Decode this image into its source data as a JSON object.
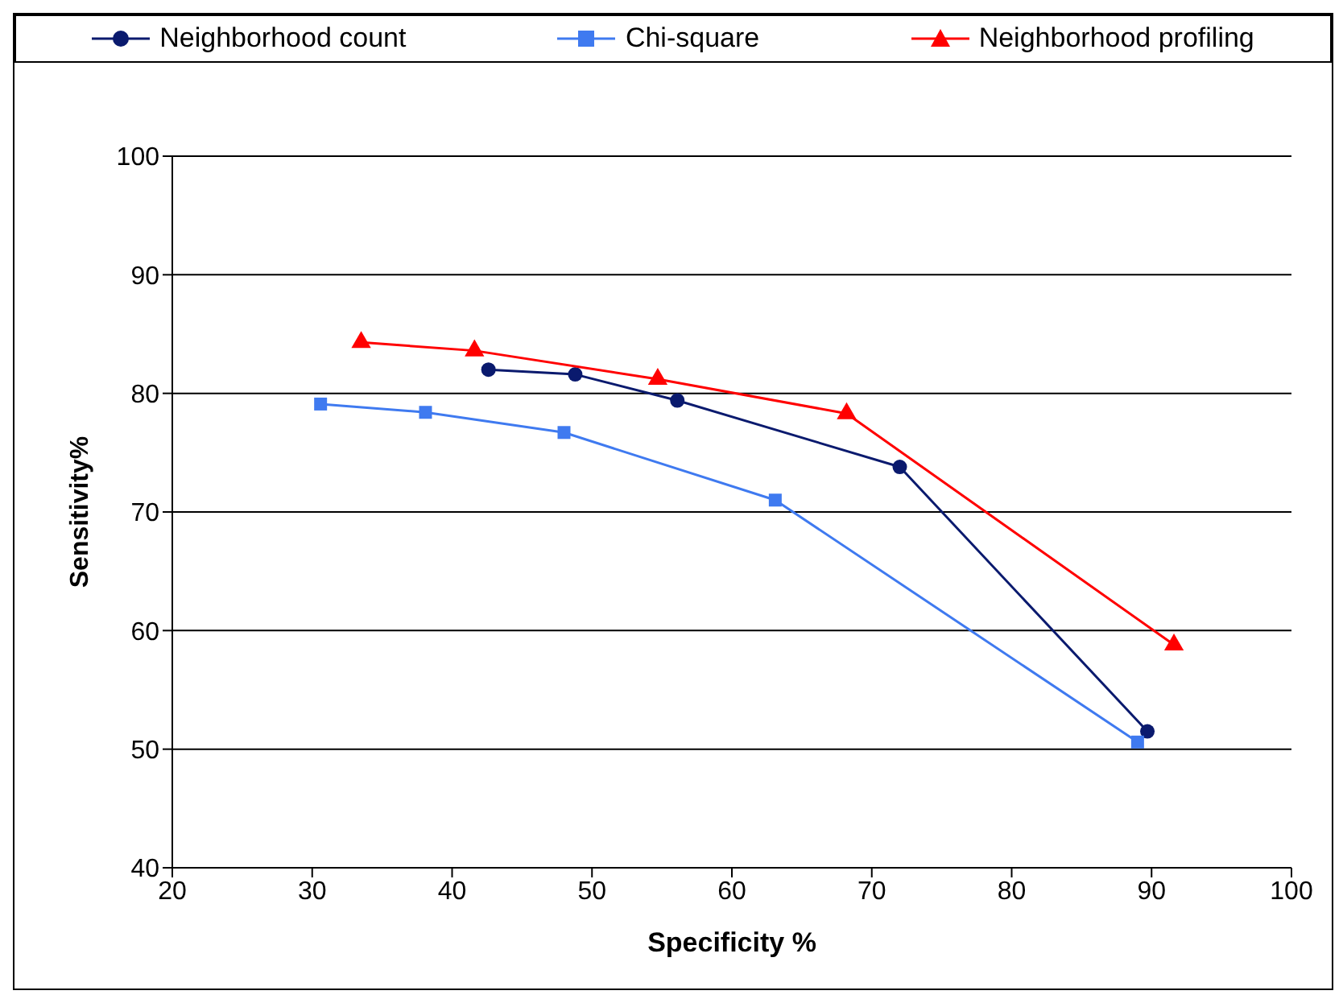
{
  "chart_data": {
    "type": "line",
    "xlabel": "Specificity %",
    "ylabel": "Sensitivity%",
    "xlim": [
      20,
      100
    ],
    "xticks": [
      20,
      30,
      40,
      50,
      60,
      70,
      80,
      90,
      100
    ],
    "ylim": [
      40,
      100
    ],
    "yticks": [
      40,
      50,
      60,
      70,
      80,
      90,
      100
    ],
    "grid": "y",
    "legend": "top",
    "series": [
      {
        "name": "Neighborhood count",
        "color": "#0a1a6e",
        "marker": "circle",
        "x": [
          42.6,
          48.8,
          56.1,
          72.0,
          89.7
        ],
        "values": [
          82.0,
          81.6,
          79.4,
          73.8,
          51.5
        ]
      },
      {
        "name": "Chi-square",
        "color": "#3f7af0",
        "marker": "square",
        "x": [
          30.6,
          38.1,
          48.0,
          63.1,
          89.0
        ],
        "values": [
          79.1,
          78.4,
          76.7,
          71.0,
          50.6
        ]
      },
      {
        "name": "Neighborhood profiling",
        "color": "#ff0000",
        "marker": "triangle",
        "x": [
          33.5,
          41.6,
          54.7,
          68.2,
          91.6
        ],
        "values": [
          84.3,
          83.6,
          81.2,
          78.3,
          58.8
        ]
      }
    ]
  }
}
